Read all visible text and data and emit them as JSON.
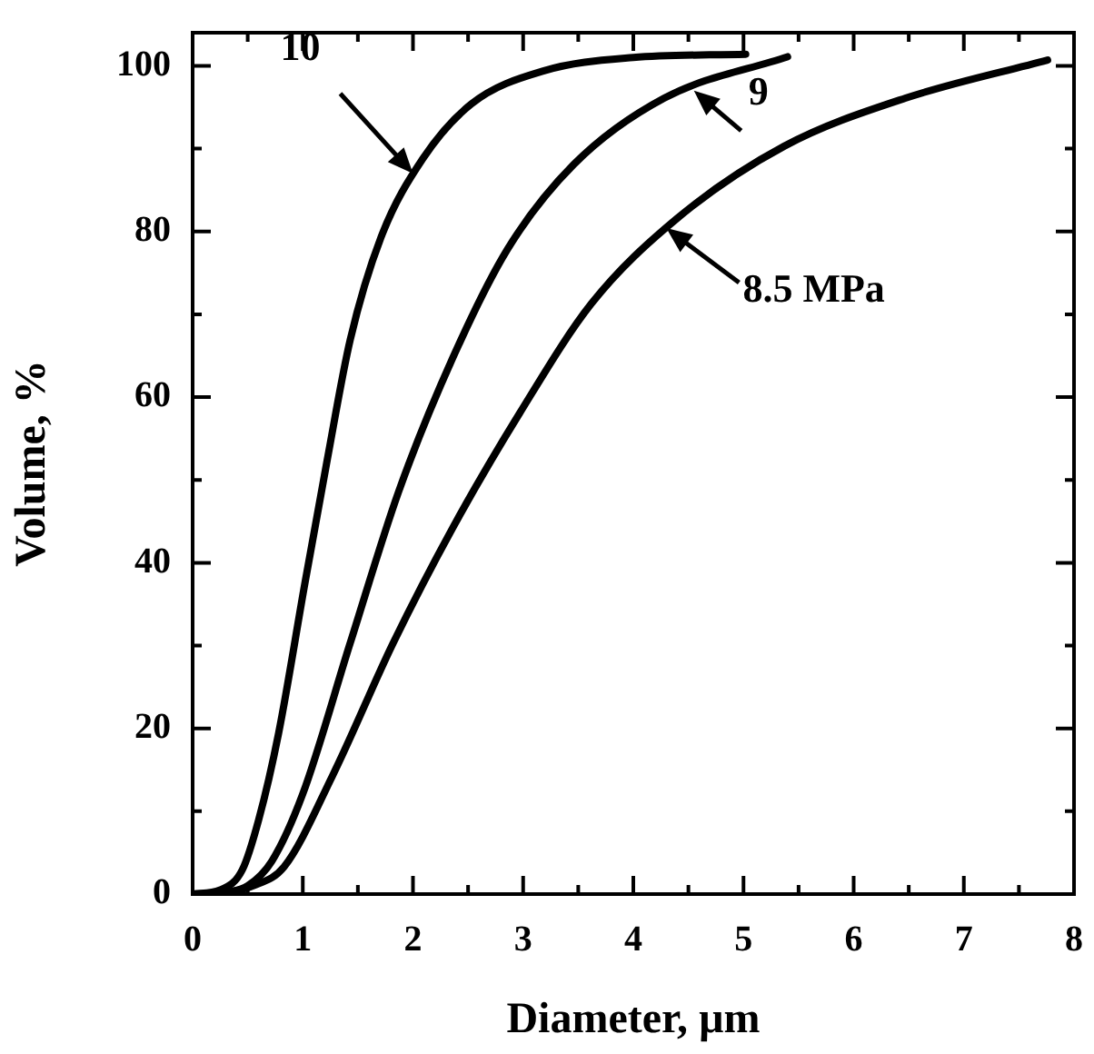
{
  "chart_data": {
    "type": "line",
    "xlabel": "Diameter, µm",
    "ylabel": "Volume, %",
    "xlim": [
      0,
      8
    ],
    "ylim": [
      0,
      104
    ],
    "xticks": [
      0,
      {
        "value": 0.5,
        "label": null
      },
      1,
      {
        "value": 1.5,
        "label": null
      },
      2,
      {
        "value": 2.5,
        "label": null
      },
      3,
      {
        "value": 3.5,
        "label": null
      },
      4,
      {
        "value": 4.5,
        "label": null
      },
      5,
      {
        "value": 5.5,
        "label": null
      },
      6,
      {
        "value": 6.5,
        "label": null
      },
      7,
      {
        "value": 7.5,
        "label": null
      },
      8
    ],
    "yticks": [
      0,
      {
        "value": 10,
        "label": null
      },
      20,
      {
        "value": 30,
        "label": null
      },
      40,
      {
        "value": 50,
        "label": null
      },
      60,
      {
        "value": 70,
        "label": null
      },
      80,
      {
        "value": 90,
        "label": null
      },
      100
    ],
    "grid": false,
    "legend": false,
    "marker": "none",
    "line_style": "solid",
    "series": [
      {
        "color": "#000000",
        "x": [
          0,
          0.25,
          0.45,
          0.6,
          0.78,
          1.02,
          1.22,
          1.43,
          1.71,
          2.09,
          2.53,
          3.19,
          4.0,
          5.02
        ],
        "values": [
          0,
          0.5,
          2.9,
          9,
          19.4,
          37.6,
          52.3,
          66.9,
          79.3,
          88.8,
          95.4,
          99.4,
          101,
          101.4
        ]
      },
      {
        "color": "#000000",
        "x": [
          0,
          0.3,
          0.5,
          0.72,
          1.0,
          1.43,
          1.87,
          2.36,
          2.86,
          3.46,
          4.28,
          5.4
        ],
        "values": [
          0,
          0.2,
          1,
          4,
          12.1,
          30.3,
          48.6,
          64.7,
          77.9,
          88.1,
          96.1,
          101.1
        ]
      },
      {
        "color": "#000000",
        "x": [
          0,
          0.3,
          0.55,
          0.83,
          1.27,
          1.82,
          2.36,
          2.97,
          3.62,
          4.39,
          5.37,
          6.47,
          7.76
        ],
        "values": [
          0,
          0.2,
          1,
          3.3,
          14.3,
          30.3,
          44.2,
          58.1,
          71.3,
          81.5,
          90.3,
          96.1,
          100.7
        ]
      }
    ],
    "annotations": [
      {
        "text": "10",
        "x": 2.0,
        "y": 87
      },
      {
        "text": "9",
        "x": 4.55,
        "y": 97
      },
      {
        "text": "8.5 MPa",
        "x": 4.3,
        "y": 80.4
      }
    ]
  }
}
